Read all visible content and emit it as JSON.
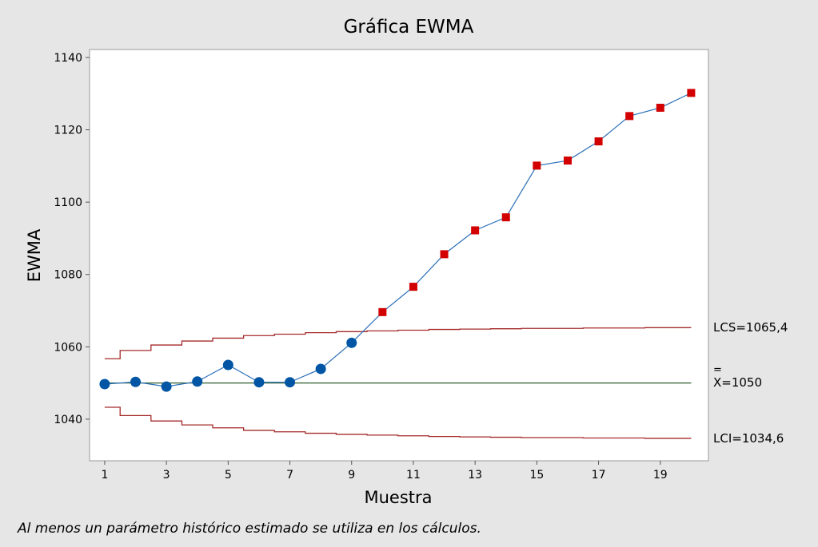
{
  "chart_data": {
    "type": "line",
    "title": "Gráfica EWMA",
    "xlabel": "Muestra",
    "ylabel": "EWMA",
    "xlim": [
      0.51,
      20.56
    ],
    "ylim": [
      1028.5,
      1142.2
    ],
    "x_ticks": [
      "1",
      "3",
      "5",
      "7",
      "9",
      "11",
      "13",
      "15",
      "17",
      "19"
    ],
    "y_ticks": [
      "1040",
      "1060",
      "1080",
      "1100",
      "1120",
      "1140"
    ],
    "x": [
      1,
      2,
      3,
      4,
      5,
      6,
      7,
      8,
      9,
      10,
      11,
      12,
      13,
      14,
      15,
      16,
      17,
      18,
      19,
      20
    ],
    "series": [
      {
        "name": "EWMA",
        "values": [
          1049.7,
          1050.3,
          1049.0,
          1050.4,
          1055.0,
          1050.2,
          1050.2,
          1053.9,
          1061.1,
          1069.6,
          1076.6,
          1085.6,
          1092.2,
          1095.8,
          1110.1,
          1111.5,
          1116.8,
          1123.8,
          1126.1,
          1130.2
        ],
        "out_of_control": [
          false,
          false,
          false,
          false,
          false,
          false,
          false,
          false,
          false,
          true,
          true,
          true,
          true,
          true,
          true,
          true,
          true,
          true,
          true,
          true
        ]
      },
      {
        "name": "LCS",
        "values": [
          1056.7,
          1059.0,
          1060.5,
          1061.6,
          1062.4,
          1063.1,
          1063.5,
          1063.9,
          1064.2,
          1064.4,
          1064.6,
          1064.8,
          1064.9,
          1065.0,
          1065.1,
          1065.1,
          1065.2,
          1065.2,
          1065.3,
          1065.3
        ]
      },
      {
        "name": "LCI",
        "values": [
          1043.3,
          1041.0,
          1039.5,
          1038.4,
          1037.6,
          1036.9,
          1036.5,
          1036.1,
          1035.8,
          1035.6,
          1035.4,
          1035.2,
          1035.1,
          1035.0,
          1034.9,
          1034.9,
          1034.8,
          1034.8,
          1034.7,
          1034.7
        ]
      }
    ],
    "center_line": 1050,
    "annotations": {
      "ucl": "LCS=1065,4",
      "cl_bar": "=",
      "cl": "X=1050",
      "lcl": "LCI=1034,6"
    },
    "colors": {
      "point_in": "#0055a5",
      "point_out": "#d20000",
      "line": "#2a6fb8",
      "limits": "#a52a2a",
      "center": "#2f5f2f"
    },
    "grid": false,
    "footnote": "Al menos un parámetro histórico estimado se utiliza en los cálculos."
  }
}
